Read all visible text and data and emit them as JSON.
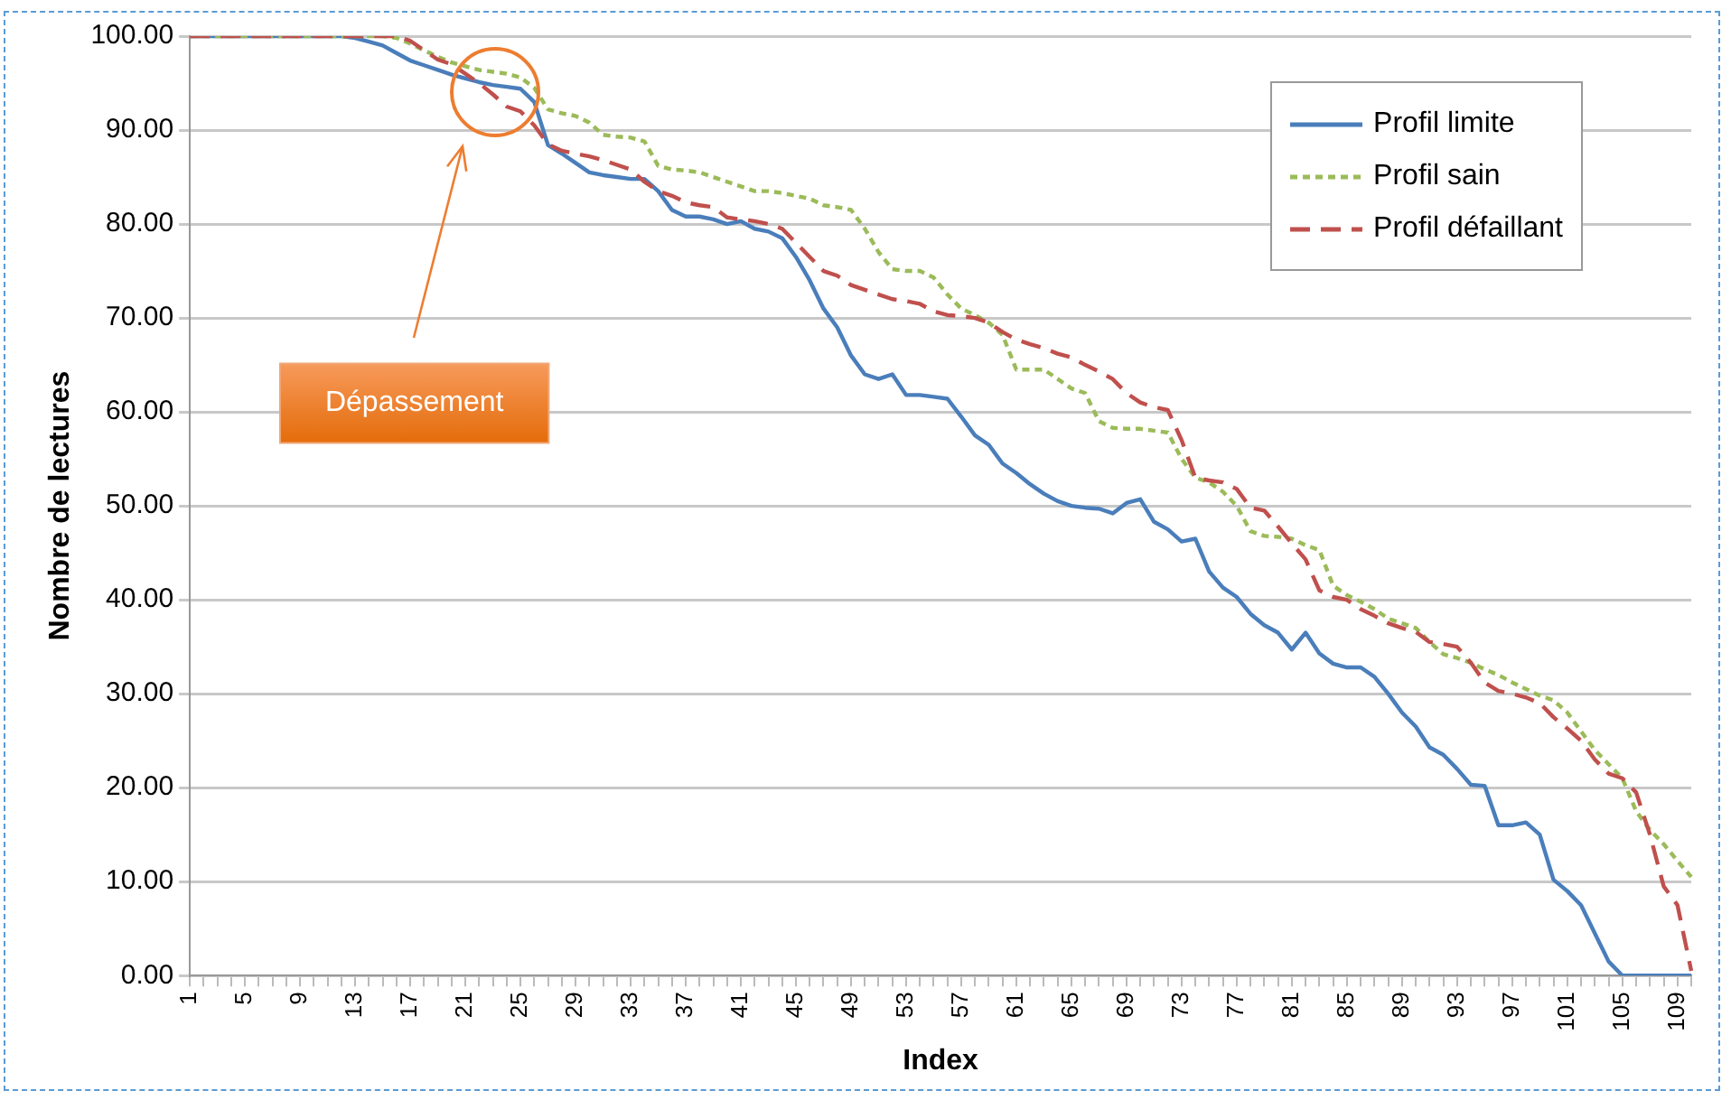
{
  "chart_data": {
    "type": "line",
    "xlabel": "Index",
    "ylabel": "Nombre de lectures",
    "categories": [
      "1",
      null,
      null,
      null,
      "5",
      null,
      null,
      null,
      "9",
      null,
      null,
      null,
      "13",
      null,
      null,
      null,
      "17",
      null,
      null,
      null,
      "21",
      null,
      null,
      null,
      "25",
      null,
      null,
      null,
      "29",
      null,
      null,
      null,
      "33",
      null,
      null,
      null,
      "37",
      null,
      null,
      null,
      "41",
      null,
      null,
      null,
      "45",
      null,
      null,
      null,
      "49",
      null,
      null,
      null,
      "53",
      null,
      null,
      null,
      "57",
      null,
      null,
      null,
      "61",
      null,
      null,
      null,
      "65",
      null,
      null,
      null,
      "69",
      null,
      null,
      null,
      "73",
      null,
      null,
      null,
      "77",
      null,
      null,
      null,
      "81",
      null,
      null,
      null,
      "85",
      null,
      null,
      null,
      "89",
      null,
      null,
      null,
      "93",
      null,
      null,
      null,
      "97",
      null,
      null,
      null,
      "101",
      null,
      null,
      null,
      "105",
      null,
      null,
      null,
      "109",
      null
    ],
    "series": [
      {
        "name": "Profil limite",
        "color": "#4a7ebb",
        "line_style": "solid",
        "values": [
          100,
          100,
          100,
          100,
          100,
          100,
          100,
          100,
          100,
          100,
          100,
          100,
          99.8,
          99.4,
          99,
          98.2,
          97.4,
          96.9,
          96.4,
          95.9,
          95.5,
          95.1,
          94.8,
          94.6,
          94.4,
          93,
          88.4,
          87.5,
          86.5,
          85.5,
          85.2,
          85,
          84.8,
          84.8,
          83.5,
          81.5,
          80.8,
          80.8,
          80.5,
          80,
          80.3,
          79.5,
          79.2,
          78.5,
          76.5,
          74,
          71,
          69,
          66,
          64,
          63.5,
          64,
          61.8,
          61.8,
          61.6,
          61.4,
          59.5,
          57.5,
          56.5,
          54.5,
          53.5,
          52.3,
          51.3,
          50.5,
          50,
          49.8,
          49.7,
          49.2,
          50.3,
          50.7,
          48.3,
          47.5,
          46.2,
          46.5,
          43,
          41.3,
          40.3,
          38.5,
          37.3,
          36.5,
          34.7,
          36.5,
          34.3,
          33.2,
          32.8,
          32.8,
          31.8,
          30,
          28,
          26.5,
          24.3,
          23.5,
          22,
          20.3,
          20.2,
          16,
          16,
          16.3,
          15,
          10.2,
          9,
          7.5,
          4.5,
          1.5,
          0,
          0,
          0,
          0,
          0,
          0
        ]
      },
      {
        "name": "Profil sain",
        "color": "#9bbb59",
        "line_style": "dashed",
        "values": [
          100,
          100,
          100,
          100,
          100,
          100,
          100,
          100,
          100,
          100,
          100,
          100,
          100,
          100,
          100,
          99.8,
          99.2,
          98.5,
          97.8,
          97.2,
          96.8,
          96.4,
          96.2,
          96,
          95.6,
          94.5,
          92.2,
          91.8,
          91.5,
          90.8,
          89.5,
          89.3,
          89.2,
          88.8,
          86.2,
          85.8,
          85.7,
          85.5,
          85,
          84.5,
          84,
          83.5,
          83.5,
          83.3,
          83,
          82.7,
          82,
          81.8,
          81.5,
          79.5,
          77,
          75.2,
          75,
          75,
          74.3,
          72.5,
          71,
          70.3,
          69.5,
          68.2,
          64.5,
          64.5,
          64.5,
          63.5,
          62.5,
          62,
          59,
          58.3,
          58.2,
          58.2,
          58,
          57.8,
          55,
          53,
          52.5,
          51.5,
          50,
          47.3,
          46.8,
          46.7,
          46.5,
          45.8,
          45.3,
          41.5,
          40.5,
          39.8,
          39,
          38,
          37.5,
          37,
          35.5,
          34.2,
          33.8,
          33.3,
          32.6,
          32,
          31.2,
          30.5,
          29.8,
          29.3,
          28,
          26,
          24,
          22.5,
          21,
          17.5,
          15.5,
          14,
          12.2,
          10.5
        ]
      },
      {
        "name": "Profil défaillant",
        "color": "#c0504d",
        "line_style": "longdash",
        "values": [
          100,
          100,
          100,
          100,
          100,
          100,
          100,
          100,
          100,
          100,
          100,
          100,
          100,
          100,
          100,
          100,
          99.5,
          98.5,
          97.5,
          97,
          96,
          95,
          93.8,
          92.5,
          92,
          90.5,
          88.5,
          87.8,
          87.5,
          87.2,
          86.8,
          86.3,
          85.8,
          84.5,
          83.5,
          83,
          82.3,
          82,
          81.8,
          80.7,
          80.5,
          80.3,
          80,
          79.5,
          78,
          76.5,
          75,
          74.5,
          73.5,
          73,
          72.5,
          72,
          71.8,
          71.5,
          70.7,
          70.3,
          70.2,
          70,
          69.5,
          68.5,
          67.7,
          67.2,
          66.8,
          66.2,
          65.8,
          65,
          64.3,
          63.5,
          62,
          61,
          60.5,
          60.2,
          57,
          53,
          52.7,
          52.5,
          51.8,
          49.8,
          49.5,
          47.8,
          46,
          44.3,
          41,
          40.3,
          40,
          39,
          38.3,
          37.5,
          37,
          36.6,
          35.5,
          35.3,
          35,
          33.3,
          31.2,
          30.3,
          30,
          29.6,
          29,
          27.5,
          26.3,
          25,
          23,
          21.5,
          21,
          19.5,
          15,
          9.5,
          7.5,
          0.5
        ]
      }
    ],
    "ylim": [
      0,
      100
    ],
    "yticks": [
      {
        "value": 0,
        "label": "0.00"
      },
      {
        "value": 10,
        "label": "10.00"
      },
      {
        "value": 20,
        "label": "20.00"
      },
      {
        "value": 30,
        "label": "30.00"
      },
      {
        "value": 40,
        "label": "40.00"
      },
      {
        "value": 50,
        "label": "50.00"
      },
      {
        "value": 60,
        "label": "60.00"
      },
      {
        "value": 70,
        "label": "70.00"
      },
      {
        "value": 80,
        "label": "80.00"
      },
      {
        "value": 90,
        "label": "90.00"
      },
      {
        "value": 100,
        "label": "100.00"
      }
    ],
    "grid": "y",
    "legend": "top right",
    "marker": "none",
    "annotations": [
      "Dépassement"
    ]
  }
}
